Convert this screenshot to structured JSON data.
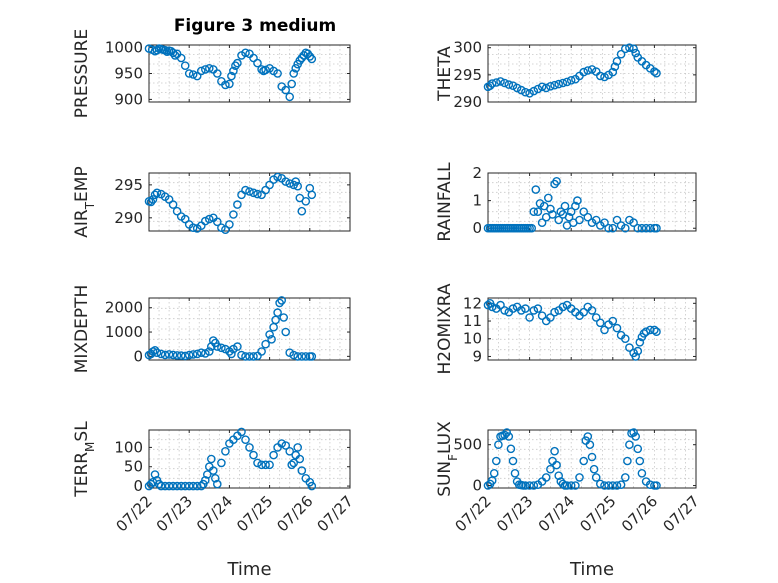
{
  "figure": {
    "title": "Figure 3 medium",
    "marker_color": "#0072bd"
  },
  "chart_data": [
    {
      "type": "scatter",
      "id": "pressure",
      "title": "Figure 3 medium",
      "ylabel": "PRESSURE",
      "xlabel": "",
      "xlim": [
        0,
        5
      ],
      "ylim": [
        895,
        1005
      ],
      "yticks": [
        900,
        950,
        1000
      ],
      "xticks": [
        0,
        1,
        2,
        3,
        4,
        5
      ],
      "xticklabels": [],
      "grid": true,
      "x": [
        0.0,
        0.08,
        0.15,
        0.2,
        0.25,
        0.3,
        0.35,
        0.4,
        0.45,
        0.5,
        0.55,
        0.6,
        0.65,
        0.7,
        0.8,
        0.9,
        1.0,
        1.1,
        1.2,
        1.3,
        1.4,
        1.5,
        1.6,
        1.7,
        1.8,
        1.9,
        2.0,
        2.05,
        2.1,
        2.15,
        2.2,
        2.3,
        2.4,
        2.5,
        2.6,
        2.7,
        2.8,
        2.85,
        2.9,
        3.0,
        3.1,
        3.2,
        3.3,
        3.4,
        3.5,
        3.55,
        3.6,
        3.65,
        3.7,
        3.75,
        3.8,
        3.85,
        3.9,
        3.95,
        4.0,
        4.05
      ],
      "y": [
        998,
        996,
        993,
        995,
        998,
        997,
        996,
        995,
        992,
        994,
        993,
        990,
        985,
        988,
        980,
        965,
        950,
        948,
        945,
        955,
        958,
        960,
        958,
        950,
        935,
        928,
        930,
        945,
        955,
        965,
        970,
        985,
        990,
        988,
        980,
        970,
        958,
        955,
        957,
        960,
        955,
        950,
        925,
        918,
        905,
        930,
        950,
        960,
        968,
        975,
        980,
        985,
        990,
        988,
        983,
        978
      ]
    },
    {
      "type": "scatter",
      "id": "theta",
      "title": "",
      "ylabel": "THETA",
      "xlabel": "",
      "xlim": [
        0,
        5
      ],
      "ylim": [
        290,
        300.5
      ],
      "yticks": [
        290,
        295,
        300
      ],
      "xticks": [
        0,
        1,
        2,
        3,
        4,
        5
      ],
      "xticklabels": [],
      "grid": true,
      "x": [
        0.0,
        0.05,
        0.1,
        0.2,
        0.3,
        0.4,
        0.5,
        0.6,
        0.7,
        0.8,
        0.9,
        1.0,
        1.1,
        1.2,
        1.3,
        1.4,
        1.5,
        1.6,
        1.7,
        1.8,
        1.9,
        2.0,
        2.1,
        2.2,
        2.3,
        2.4,
        2.5,
        2.6,
        2.7,
        2.8,
        2.9,
        3.0,
        3.05,
        3.1,
        3.2,
        3.3,
        3.4,
        3.5,
        3.55,
        3.6,
        3.7,
        3.8,
        3.9,
        4.0,
        4.05
      ],
      "y": [
        292.8,
        293.0,
        293.4,
        293.6,
        293.8,
        293.5,
        293.2,
        293.0,
        292.6,
        292.2,
        291.8,
        291.6,
        292.0,
        292.4,
        292.8,
        292.6,
        292.9,
        293.1,
        293.3,
        293.5,
        293.7,
        294.0,
        294.2,
        294.8,
        295.5,
        295.8,
        296.0,
        295.6,
        294.8,
        294.6,
        295.0,
        295.5,
        296.5,
        297.5,
        298.8,
        299.8,
        300.0,
        299.8,
        299.0,
        298.2,
        297.5,
        296.8,
        296.2,
        295.6,
        295.3
      ]
    },
    {
      "type": "scatter",
      "id": "air_temp",
      "title": "",
      "ylabel": "AIR_TEMP",
      "xlabel": "",
      "xlim": [
        0,
        5
      ],
      "ylim": [
        288,
        296.8
      ],
      "yticks": [
        290,
        295
      ],
      "xticks": [
        0,
        1,
        2,
        3,
        4,
        5
      ],
      "xticklabels": [],
      "grid": true,
      "x": [
        0.0,
        0.05,
        0.1,
        0.15,
        0.2,
        0.3,
        0.4,
        0.5,
        0.6,
        0.7,
        0.8,
        0.9,
        1.0,
        1.1,
        1.2,
        1.3,
        1.4,
        1.5,
        1.6,
        1.7,
        1.8,
        1.9,
        2.0,
        2.1,
        2.2,
        2.3,
        2.4,
        2.5,
        2.6,
        2.7,
        2.8,
        2.9,
        3.0,
        3.1,
        3.2,
        3.3,
        3.4,
        3.5,
        3.6,
        3.65,
        3.7,
        3.75,
        3.8,
        3.9,
        4.0,
        4.05
      ],
      "y": [
        292.5,
        292.4,
        292.8,
        293.5,
        293.8,
        293.6,
        293.2,
        292.8,
        292.0,
        291.0,
        290.2,
        289.8,
        289.0,
        288.5,
        288.4,
        288.8,
        289.5,
        289.8,
        290.0,
        289.4,
        288.5,
        288.2,
        289.0,
        290.5,
        292.0,
        293.5,
        294.2,
        294.0,
        293.8,
        293.6,
        293.5,
        294.2,
        295.0,
        295.8,
        296.2,
        296.0,
        295.5,
        295.2,
        295.0,
        295.5,
        294.8,
        293.0,
        291.0,
        292.5,
        294.5,
        293.5
      ]
    },
    {
      "type": "scatter",
      "id": "rainfall",
      "title": "",
      "ylabel": "RAINFALL",
      "xlabel": "",
      "xlim": [
        0,
        5
      ],
      "ylim": [
        -0.1,
        2
      ],
      "yticks": [
        0,
        1,
        2
      ],
      "xticks": [
        0,
        1,
        2,
        3,
        4,
        5
      ],
      "xticklabels": [],
      "grid": true,
      "x": [
        0.0,
        0.05,
        0.1,
        0.15,
        0.2,
        0.25,
        0.3,
        0.35,
        0.4,
        0.45,
        0.5,
        0.55,
        0.6,
        0.65,
        0.7,
        0.75,
        0.8,
        0.85,
        0.9,
        0.95,
        1.0,
        1.05,
        1.1,
        1.15,
        1.2,
        1.25,
        1.3,
        1.35,
        1.4,
        1.45,
        1.5,
        1.55,
        1.6,
        1.65,
        1.7,
        1.75,
        1.8,
        1.85,
        1.9,
        1.95,
        2.0,
        2.05,
        2.1,
        2.15,
        2.2,
        2.3,
        2.4,
        2.5,
        2.6,
        2.7,
        2.8,
        2.9,
        3.0,
        3.1,
        3.2,
        3.3,
        3.4,
        3.5,
        3.6,
        3.7,
        3.8,
        3.9,
        4.0,
        4.05
      ],
      "y": [
        0,
        0,
        0,
        0,
        0,
        0,
        0,
        0,
        0,
        0,
        0,
        0,
        0,
        0,
        0,
        0,
        0,
        0,
        0,
        0,
        0,
        0,
        0.6,
        1.4,
        0.6,
        0.9,
        0.2,
        0.8,
        0.4,
        1.1,
        0.7,
        0.5,
        1.6,
        1.7,
        0.3,
        0.6,
        0.5,
        0.8,
        0.1,
        0.4,
        0.6,
        0.2,
        0.8,
        1.0,
        0.3,
        0.6,
        0.4,
        0.2,
        0.3,
        0.1,
        0.2,
        0,
        0,
        0.3,
        0.1,
        0,
        0.3,
        0.2,
        0,
        0,
        0,
        0,
        0,
        0
      ]
    },
    {
      "type": "scatter",
      "id": "mixdepth",
      "title": "",
      "ylabel": "MIXDEPTH",
      "xlabel": "",
      "xlim": [
        0,
        5
      ],
      "ylim": [
        -150,
        2400
      ],
      "yticks": [
        0,
        1000,
        2000
      ],
      "xticks": [
        0,
        1,
        2,
        3,
        4,
        5
      ],
      "xticklabels": [],
      "grid": true,
      "x": [
        0.0,
        0.05,
        0.1,
        0.15,
        0.2,
        0.3,
        0.4,
        0.5,
        0.6,
        0.7,
        0.8,
        0.9,
        1.0,
        1.1,
        1.2,
        1.3,
        1.4,
        1.5,
        1.55,
        1.6,
        1.65,
        1.7,
        1.8,
        1.9,
        2.0,
        2.05,
        2.1,
        2.2,
        2.3,
        2.4,
        2.5,
        2.6,
        2.7,
        2.8,
        2.9,
        3.0,
        3.05,
        3.1,
        3.15,
        3.2,
        3.25,
        3.3,
        3.35,
        3.4,
        3.5,
        3.6,
        3.7,
        3.8,
        3.9,
        4.0,
        4.05
      ],
      "y": [
        50,
        100,
        200,
        250,
        150,
        100,
        60,
        80,
        60,
        40,
        30,
        20,
        50,
        80,
        100,
        150,
        120,
        200,
        400,
        650,
        550,
        400,
        350,
        300,
        200,
        100,
        300,
        400,
        50,
        0,
        0,
        0,
        20,
        200,
        500,
        900,
        700,
        1200,
        1500,
        1800,
        2200,
        2300,
        1600,
        1000,
        150,
        50,
        0,
        0,
        0,
        0,
        0
      ]
    },
    {
      "type": "scatter",
      "id": "h2omixra",
      "title": "",
      "ylabel": "H2OMIXRA",
      "xlabel": "",
      "xlim": [
        0,
        5
      ],
      "ylim": [
        8.8,
        12.3
      ],
      "yticks": [
        9,
        10,
        11,
        12
      ],
      "xticks": [
        0,
        1,
        2,
        3,
        4,
        5
      ],
      "xticklabels": [],
      "grid": true,
      "x": [
        0.0,
        0.05,
        0.1,
        0.2,
        0.3,
        0.4,
        0.5,
        0.6,
        0.7,
        0.8,
        0.9,
        1.0,
        1.1,
        1.2,
        1.3,
        1.4,
        1.5,
        1.6,
        1.7,
        1.8,
        1.9,
        2.0,
        2.1,
        2.2,
        2.3,
        2.4,
        2.5,
        2.6,
        2.7,
        2.8,
        2.9,
        3.0,
        3.1,
        3.2,
        3.3,
        3.4,
        3.5,
        3.55,
        3.6,
        3.65,
        3.7,
        3.75,
        3.8,
        3.9,
        4.0,
        4.05
      ],
      "y": [
        11.9,
        12.0,
        11.8,
        11.7,
        11.9,
        11.6,
        11.5,
        11.7,
        11.8,
        11.6,
        11.7,
        11.2,
        11.6,
        11.7,
        11.3,
        11.0,
        11.2,
        11.5,
        11.6,
        11.8,
        11.9,
        11.7,
        11.5,
        11.3,
        11.5,
        11.8,
        11.6,
        11.2,
        10.9,
        10.5,
        10.8,
        11.0,
        10.6,
        10.2,
        10.0,
        9.5,
        9.2,
        9.0,
        9.3,
        9.8,
        10.1,
        10.3,
        10.4,
        10.5,
        10.5,
        10.4
      ]
    },
    {
      "type": "scatter",
      "id": "terr_msl",
      "title": "",
      "ylabel": "TERR_MSL",
      "xlabel": "Time",
      "xlim": [
        0,
        5
      ],
      "ylim": [
        -5,
        145
      ],
      "yticks": [
        0,
        50,
        100
      ],
      "xticks": [
        0,
        1,
        2,
        3,
        4,
        5
      ],
      "xticklabels": [
        "07/22",
        "07/23",
        "07/24",
        "07/25",
        "07/26",
        "07/27"
      ],
      "grid": true,
      "x": [
        0.0,
        0.05,
        0.1,
        0.15,
        0.2,
        0.25,
        0.3,
        0.4,
        0.5,
        0.6,
        0.7,
        0.8,
        0.9,
        1.0,
        1.1,
        1.2,
        1.3,
        1.35,
        1.4,
        1.45,
        1.5,
        1.55,
        1.6,
        1.65,
        1.7,
        1.8,
        1.9,
        2.0,
        2.1,
        2.2,
        2.3,
        2.4,
        2.5,
        2.6,
        2.7,
        2.8,
        2.9,
        3.0,
        3.1,
        3.2,
        3.3,
        3.4,
        3.5,
        3.55,
        3.6,
        3.65,
        3.7,
        3.75,
        3.8,
        3.9,
        4.0,
        4.05
      ],
      "y": [
        0,
        5,
        10,
        30,
        15,
        5,
        0,
        0,
        0,
        0,
        0,
        0,
        0,
        0,
        0,
        0,
        0,
        5,
        15,
        30,
        50,
        70,
        40,
        20,
        5,
        60,
        90,
        110,
        120,
        130,
        140,
        120,
        100,
        80,
        60,
        55,
        55,
        55,
        80,
        100,
        110,
        105,
        90,
        55,
        60,
        80,
        100,
        70,
        40,
        20,
        10,
        0
      ],
      "extra_y": []
    },
    {
      "type": "scatter",
      "id": "sun_flux",
      "title": "",
      "ylabel": "SUN_FLUX",
      "xlabel": "Time",
      "xlim": [
        0,
        5
      ],
      "ylim": [
        -30,
        680
      ],
      "yticks": [
        0,
        500
      ],
      "xticks": [
        0,
        1,
        2,
        3,
        4,
        5
      ],
      "xticklabels": [
        "07/22",
        "07/23",
        "07/24",
        "07/25",
        "07/26",
        "07/27"
      ],
      "grid": true,
      "x": [
        0.0,
        0.05,
        0.1,
        0.15,
        0.2,
        0.25,
        0.3,
        0.35,
        0.4,
        0.45,
        0.5,
        0.55,
        0.6,
        0.65,
        0.7,
        0.75,
        0.8,
        0.85,
        0.9,
        1.0,
        1.1,
        1.2,
        1.3,
        1.4,
        1.5,
        1.55,
        1.6,
        1.65,
        1.7,
        1.75,
        1.8,
        1.85,
        1.9,
        2.0,
        2.1,
        2.2,
        2.3,
        2.35,
        2.4,
        2.45,
        2.5,
        2.55,
        2.6,
        2.7,
        2.8,
        2.9,
        3.0,
        3.1,
        3.2,
        3.3,
        3.35,
        3.4,
        3.45,
        3.5,
        3.55,
        3.6,
        3.65,
        3.7,
        3.8,
        3.9,
        4.0,
        4.05
      ],
      "y": [
        0,
        20,
        60,
        150,
        300,
        500,
        600,
        610,
        620,
        650,
        600,
        450,
        300,
        150,
        50,
        10,
        5,
        0,
        0,
        0,
        0,
        10,
        50,
        100,
        200,
        300,
        420,
        250,
        120,
        50,
        20,
        0,
        0,
        0,
        0,
        100,
        300,
        550,
        600,
        500,
        350,
        200,
        100,
        20,
        0,
        0,
        0,
        0,
        10,
        100,
        300,
        500,
        640,
        650,
        600,
        450,
        300,
        150,
        50,
        10,
        0,
        0
      ]
    }
  ]
}
